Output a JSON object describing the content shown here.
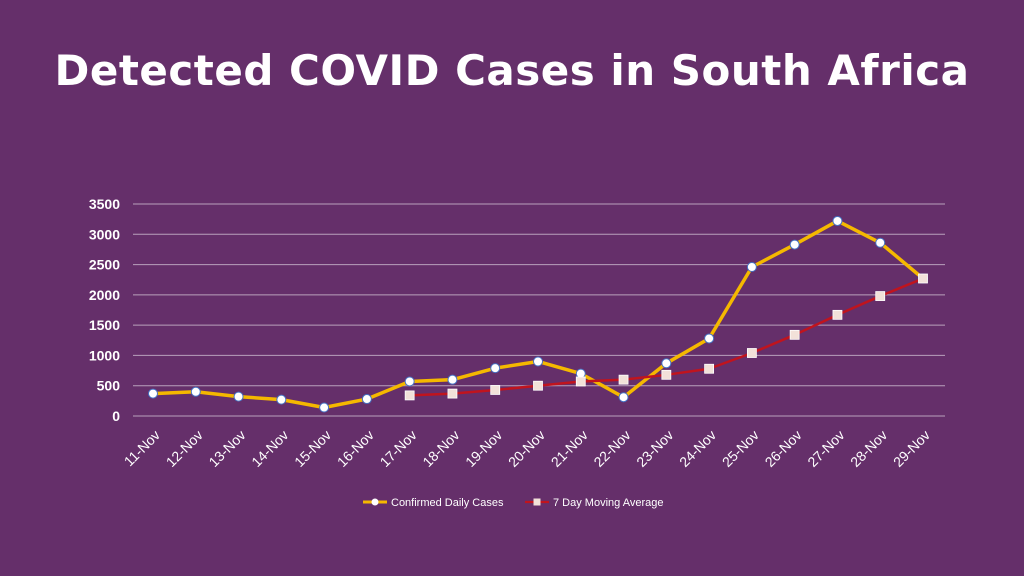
{
  "chart_data": {
    "type": "line",
    "title": "Detected COVID Cases in South Africa",
    "categories": [
      "11-Nov",
      "12-Nov",
      "13-Nov",
      "14-Nov",
      "15-Nov",
      "16-Nov",
      "17-Nov",
      "18-Nov",
      "19-Nov",
      "20-Nov",
      "21-Nov",
      "22-Nov",
      "23-Nov",
      "24-Nov",
      "25-Nov",
      "26-Nov",
      "27-Nov",
      "28-Nov",
      "29-Nov"
    ],
    "y_ticks": [
      0,
      500,
      1000,
      1500,
      2000,
      2500,
      3000,
      3500
    ],
    "ylim": [
      0,
      3500
    ],
    "grid": true,
    "legend_position": "bottom",
    "series": [
      {
        "name": "Confirmed Daily Cases",
        "color": "#f5b800",
        "marker": "circle",
        "values": [
          370,
          400,
          320,
          270,
          140,
          280,
          570,
          600,
          790,
          900,
          700,
          310,
          870,
          1280,
          2460,
          2830,
          3220,
          2860,
          2270
        ]
      },
      {
        "name": "7 Day Moving Average",
        "color": "#c0141e",
        "marker": "square",
        "values": [
          null,
          null,
          null,
          null,
          null,
          null,
          340,
          370,
          430,
          500,
          570,
          600,
          680,
          780,
          1040,
          1340,
          1670,
          1980,
          2270
        ]
      }
    ]
  }
}
